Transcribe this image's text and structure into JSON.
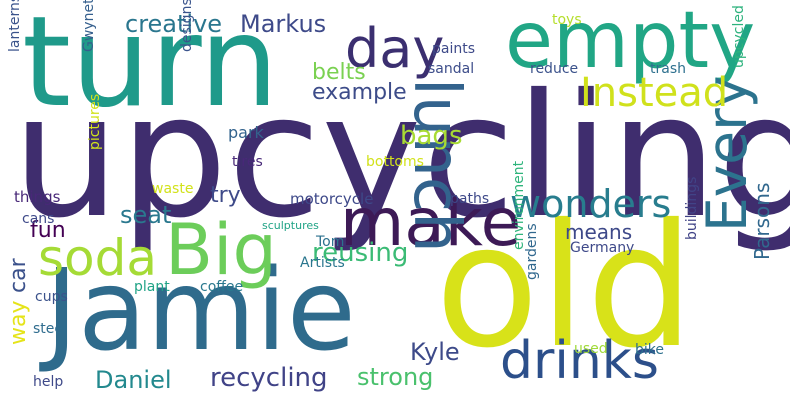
{
  "words": [
    {
      "text": "upcycling",
      "color": "#3f2d6e",
      "rot": 0
    },
    {
      "text": "turn",
      "color": "#1f9a8a",
      "rot": 0
    },
    {
      "text": "Jamie",
      "color": "#2f6b8c",
      "rot": 0
    },
    {
      "text": "old",
      "color": "#d8e219",
      "rot": 0
    },
    {
      "text": "empty",
      "color": "#21a685",
      "rot": 0
    },
    {
      "text": "make",
      "color": "#3d1a56",
      "rot": 0
    },
    {
      "text": "lunch",
      "color": "#33638d",
      "rot": 90
    },
    {
      "text": "Big",
      "color": "#6ccd5a",
      "rot": 0
    },
    {
      "text": "day",
      "color": "#3b2f70",
      "rot": 0
    },
    {
      "text": "Every",
      "color": "#2c738e",
      "rot": -90
    },
    {
      "text": "drinks",
      "color": "#2c4f8a",
      "rot": 0
    },
    {
      "text": "soda",
      "color": "#a5db36",
      "rot": 0
    },
    {
      "text": "wonders",
      "color": "#287d8e",
      "rot": 0
    },
    {
      "text": "Instead",
      "color": "#d0e11c",
      "rot": 0
    },
    {
      "text": "recycling",
      "color": "#404387",
      "rot": 0
    },
    {
      "text": "reusing",
      "color": "#3bbb75",
      "rot": 0
    },
    {
      "text": "creative",
      "color": "#2a768e",
      "rot": 0
    },
    {
      "text": "Markus",
      "color": "#3e4a89",
      "rot": 0
    },
    {
      "text": "belts",
      "color": "#7ad151",
      "rot": 0
    },
    {
      "text": "example",
      "color": "#3d4c89",
      "rot": 0
    },
    {
      "text": "Daniel",
      "color": "#23898e",
      "rot": 0
    },
    {
      "text": "strong",
      "color": "#4ac16d",
      "rot": 0
    },
    {
      "text": "Kyle",
      "color": "#3d4a89",
      "rot": 0
    },
    {
      "text": "bags",
      "color": "#a8db34",
      "rot": 0
    },
    {
      "text": "seat",
      "color": "#2a788e",
      "rot": 0
    },
    {
      "text": "try",
      "color": "#3e4a89",
      "rot": 0
    },
    {
      "text": "fun",
      "color": "#440154",
      "rot": 0
    },
    {
      "text": "car",
      "color": "#3b518b",
      "rot": -90
    },
    {
      "text": "way",
      "color": "#e5e419",
      "rot": -90
    },
    {
      "text": "means",
      "color": "#3e4989",
      "rot": 0
    },
    {
      "text": "Parsons",
      "color": "#31688e",
      "rot": -90
    },
    {
      "text": "lanterns",
      "color": "#3a538b",
      "rot": -90
    },
    {
      "text": "Gwyneth",
      "color": "#355f8d",
      "rot": -90
    },
    {
      "text": "paints",
      "color": "#3e4a89",
      "rot": 0
    },
    {
      "text": "sandal",
      "color": "#3d4d8a",
      "rot": 0
    },
    {
      "text": "reduce",
      "color": "#3b528b",
      "rot": 0
    },
    {
      "text": "toys",
      "color": "#b5de2b",
      "rot": 0
    },
    {
      "text": "trash",
      "color": "#2d708e",
      "rot": 0
    },
    {
      "text": "upcycled",
      "color": "#2db27d",
      "rot": -90
    },
    {
      "text": "designs",
      "color": "#3a548c",
      "rot": -90
    },
    {
      "text": "park",
      "color": "#33638d",
      "rot": 0
    },
    {
      "text": "tires",
      "color": "#482878",
      "rot": 0
    },
    {
      "text": "bottoms",
      "color": "#d2e21b",
      "rot": 0
    },
    {
      "text": "pictures",
      "color": "#d2e21b",
      "rot": -90
    },
    {
      "text": "waste",
      "color": "#d2e21b",
      "rot": 0
    },
    {
      "text": "things",
      "color": "#482878",
      "rot": 0
    },
    {
      "text": "cans",
      "color": "#3e4989",
      "rot": 0
    },
    {
      "text": "motorcycle",
      "color": "#3e4989",
      "rot": 0
    },
    {
      "text": "paths",
      "color": "#3e4989",
      "rot": 0
    },
    {
      "text": "sculptures",
      "color": "#20a386",
      "rot": 0
    },
    {
      "text": "Tom",
      "color": "#2c718e",
      "rot": 0
    },
    {
      "text": "Artists",
      "color": "#2a768e",
      "rot": 0
    },
    {
      "text": "Germany",
      "color": "#3e4989",
      "rot": 0
    },
    {
      "text": "environment",
      "color": "#2fb47c",
      "rot": -90
    },
    {
      "text": "gardens",
      "color": "#31688e",
      "rot": -90
    },
    {
      "text": "buildings",
      "color": "#414487",
      "rot": -90
    },
    {
      "text": "plant",
      "color": "#20a386",
      "rot": 0
    },
    {
      "text": "coffee",
      "color": "#2a788e",
      "rot": 0
    },
    {
      "text": "cups",
      "color": "#3b528b",
      "rot": 0
    },
    {
      "text": "steel",
      "color": "#2f6c8e",
      "rot": 0
    },
    {
      "text": "help",
      "color": "#3e4989",
      "rot": 0
    },
    {
      "text": "used",
      "color": "#a0da39",
      "rot": 0
    },
    {
      "text": "bike",
      "color": "#2d708e",
      "rot": 0
    }
  ]
}
